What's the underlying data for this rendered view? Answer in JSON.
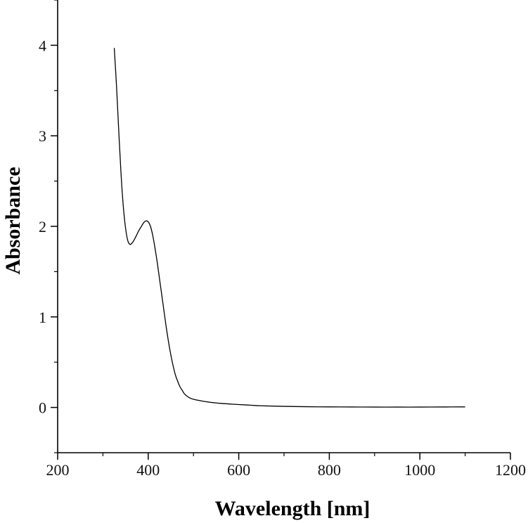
{
  "chart_data": {
    "type": "line",
    "title": "",
    "xlabel": "Wavelength [nm]",
    "ylabel": "Absorbance",
    "xlim": [
      200,
      1200
    ],
    "ylim": [
      -0.5,
      4.5
    ],
    "xticks": [
      200,
      400,
      600,
      800,
      1000,
      1200
    ],
    "yticks": [
      0,
      1,
      2,
      3,
      4
    ],
    "grid": false,
    "legend": "none",
    "colors": {
      "line": "#000000",
      "axis": "#000000"
    },
    "series": [
      {
        "x": [
          325,
          330,
          335,
          340,
          345,
          350,
          355,
          360,
          365,
          370,
          375,
          380,
          385,
          390,
          395,
          400,
          405,
          410,
          415,
          420,
          425,
          430,
          435,
          440,
          445,
          450,
          455,
          460,
          465,
          470,
          475,
          480,
          490,
          500,
          520,
          540,
          560,
          580,
          600,
          625,
          650,
          700,
          750,
          800,
          850,
          900,
          950,
          1000,
          1050,
          1100
        ],
        "y": [
          3.97,
          3.55,
          3.05,
          2.58,
          2.22,
          1.98,
          1.84,
          1.8,
          1.82,
          1.86,
          1.91,
          1.96,
          2.0,
          2.04,
          2.06,
          2.05,
          2.0,
          1.9,
          1.76,
          1.6,
          1.42,
          1.24,
          1.06,
          0.88,
          0.72,
          0.58,
          0.46,
          0.36,
          0.29,
          0.23,
          0.19,
          0.15,
          0.11,
          0.09,
          0.07,
          0.055,
          0.045,
          0.038,
          0.032,
          0.025,
          0.018,
          0.012,
          0.008,
          0.006,
          0.005,
          0.004,
          0.004,
          0.004,
          0.005,
          0.006
        ]
      }
    ]
  }
}
